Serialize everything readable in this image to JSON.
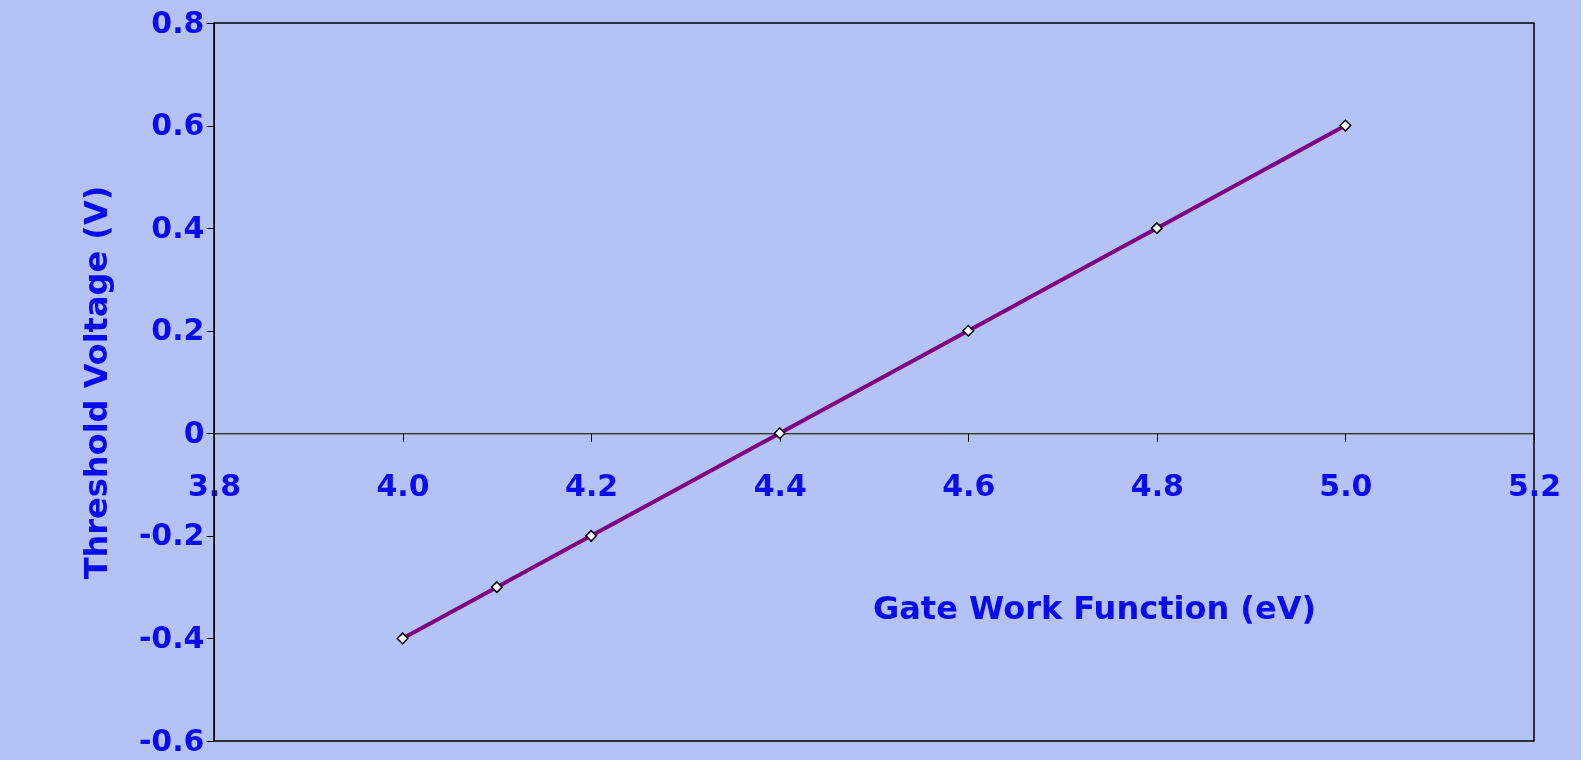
{
  "chart_data": {
    "type": "line",
    "xlabel": "Gate Work Function (eV)",
    "ylabel": "Threshold Voltage (V)",
    "x": [
      4.0,
      4.1,
      4.2,
      4.4,
      4.6,
      4.8,
      5.0
    ],
    "series": [
      {
        "color": "#800080",
        "values": [
          -0.4,
          -0.3,
          -0.2,
          0.0,
          0.2,
          0.4,
          0.6
        ]
      }
    ],
    "xlim": [
      3.8,
      5.2
    ],
    "xticks": [
      {
        "value": 3.8,
        "label": "3.8"
      },
      {
        "value": 4.0,
        "label": "4.0"
      },
      {
        "value": 4.2,
        "label": "4.2"
      },
      {
        "value": 4.4,
        "label": "4.4"
      },
      {
        "value": 4.6,
        "label": "4.6"
      },
      {
        "value": 4.8,
        "label": "4.8"
      },
      {
        "value": 5.0,
        "label": "5.0"
      },
      {
        "value": 5.2,
        "label": "5.2"
      }
    ],
    "ylim": [
      -0.6,
      0.8
    ],
    "yticks": [
      -0.6,
      -0.4,
      -0.2,
      0,
      0.2,
      0.4,
      0.6,
      0.8
    ],
    "marker": "diamond",
    "line_style": "solid",
    "grid": false
  }
}
